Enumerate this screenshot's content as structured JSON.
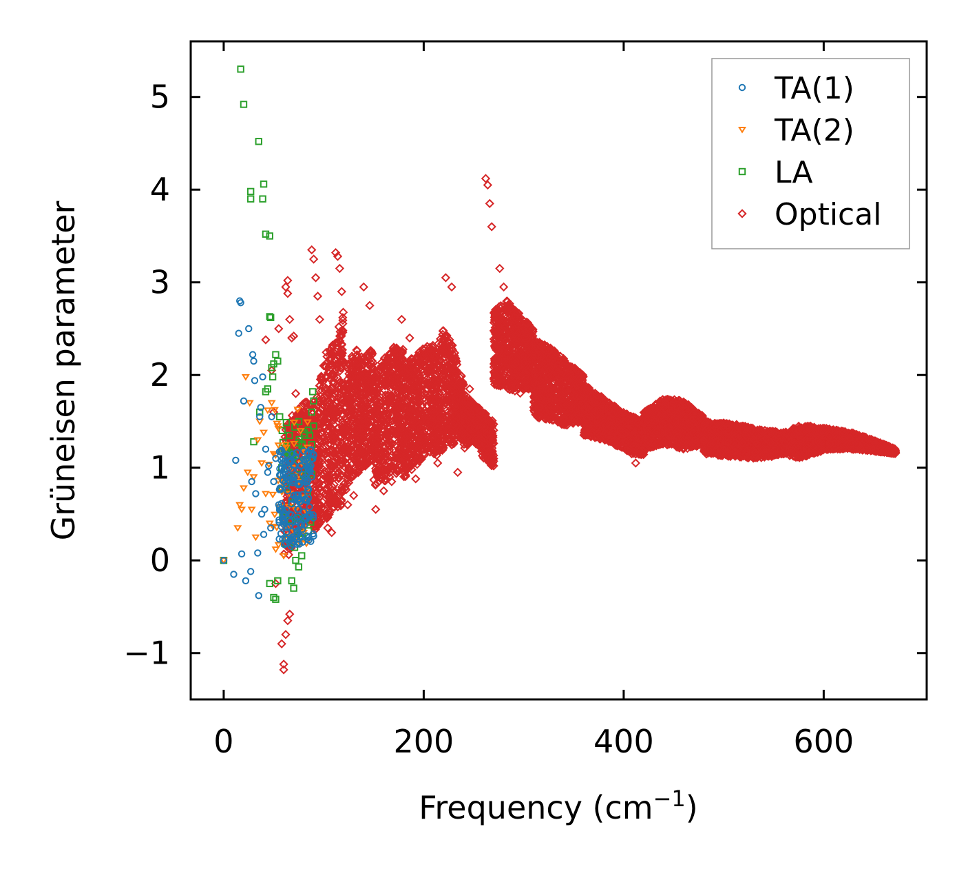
{
  "chart_data": {
    "type": "scatter",
    "title": "",
    "xlabel": "Frequency (cm",
    "xlabel_sup": "−1",
    "xlabel_tail": ")",
    "ylabel": "Grüneisen parameter",
    "xlim": [
      -33,
      703
    ],
    "ylim": [
      -1.5,
      5.6
    ],
    "xticks": [
      0,
      200,
      400,
      600
    ],
    "yticks": [
      -1,
      0,
      1,
      2,
      3,
      4,
      5
    ],
    "ytick_labels": [
      "−1",
      "0",
      "1",
      "2",
      "3",
      "4",
      "5"
    ],
    "legend_position": "top-right",
    "series": [
      {
        "name": "TA(1)",
        "marker": "circle",
        "color": "#1f77b4",
        "points": [
          [
            0,
            0
          ],
          [
            10,
            -0.15
          ],
          [
            12,
            1.08
          ],
          [
            15,
            2.45
          ],
          [
            16,
            2.8
          ],
          [
            17,
            2.78
          ],
          [
            18,
            0.07
          ],
          [
            20,
            1.72
          ],
          [
            22,
            -0.22
          ],
          [
            25,
            2.5
          ],
          [
            27,
            -0.12
          ],
          [
            28,
            0.85
          ],
          [
            29,
            2.22
          ],
          [
            30,
            2.15
          ],
          [
            31,
            1.94
          ],
          [
            32,
            0.72
          ],
          [
            34,
            0.08
          ],
          [
            35,
            -0.38
          ],
          [
            36,
            1.55
          ],
          [
            37,
            1.65
          ],
          [
            38,
            0.5
          ],
          [
            39,
            1.98
          ],
          [
            40,
            0.28
          ],
          [
            41,
            0.55
          ],
          [
            42,
            1.2
          ],
          [
            44,
            0.95
          ],
          [
            45,
            1.02
          ],
          [
            47,
            0.35
          ],
          [
            48,
            1.55
          ],
          [
            50,
            0.85
          ],
          [
            52,
            1.1
          ],
          [
            55,
            0.6
          ],
          [
            57,
            0.92
          ],
          [
            60,
            0.48
          ],
          [
            62,
            1.05
          ],
          [
            64,
            0.75
          ],
          [
            66,
            0.42
          ],
          [
            68,
            0.98
          ],
          [
            70,
            0.7
          ],
          [
            72,
            1.12
          ],
          [
            74,
            0.55
          ],
          [
            76,
            0.82
          ],
          [
            78,
            0.38
          ],
          [
            80,
            1.18
          ],
          [
            82,
            0.65
          ],
          [
            84,
            1.0
          ],
          [
            86,
            0.5
          ],
          [
            88,
            0.9
          ]
        ]
      },
      {
        "name": "TA(2)",
        "marker": "triangle-down",
        "color": "#ff7f0e",
        "points": [
          [
            0,
            0
          ],
          [
            14,
            0.35
          ],
          [
            16,
            0.6
          ],
          [
            18,
            0.55
          ],
          [
            20,
            0.78
          ],
          [
            22,
            1.98
          ],
          [
            24,
            0.95
          ],
          [
            26,
            1.7
          ],
          [
            28,
            0.55
          ],
          [
            30,
            0.9
          ],
          [
            32,
            0.25
          ],
          [
            34,
            1.3
          ],
          [
            36,
            1.5
          ],
          [
            38,
            1.05
          ],
          [
            40,
            1.38
          ],
          [
            42,
            0.72
          ],
          [
            44,
            1.62
          ],
          [
            46,
            0.4
          ],
          [
            48,
            1.7
          ],
          [
            50,
            1.15
          ],
          [
            52,
            0.12
          ],
          [
            54,
            1.45
          ],
          [
            56,
            0.58
          ],
          [
            58,
            0.88
          ],
          [
            60,
            0.05
          ],
          [
            62,
            1.25
          ],
          [
            64,
            0.35
          ],
          [
            66,
            0.72
          ],
          [
            68,
            1.0
          ],
          [
            70,
            0.22
          ],
          [
            72,
            0.55
          ],
          [
            75,
            0.85
          ],
          [
            78,
            1.05
          ],
          [
            80,
            0.3
          ]
        ]
      },
      {
        "name": "LA",
        "marker": "square",
        "color": "#2ca02c",
        "points": [
          [
            0,
            0
          ],
          [
            17,
            5.3
          ],
          [
            20,
            4.92
          ],
          [
            27,
            3.98
          ],
          [
            27,
            3.9
          ],
          [
            35,
            4.52
          ],
          [
            40,
            4.06
          ],
          [
            39,
            3.9
          ],
          [
            42,
            3.52
          ],
          [
            46,
            3.5
          ],
          [
            46,
            2.63
          ],
          [
            47,
            2.62
          ],
          [
            48,
            2.08
          ],
          [
            49,
            1.98
          ],
          [
            50,
            2.12
          ],
          [
            52,
            2.22
          ],
          [
            54,
            2.15
          ],
          [
            42,
            1.82
          ],
          [
            44,
            1.85
          ],
          [
            30,
            1.28
          ],
          [
            36,
            1.6
          ],
          [
            46,
            -0.25
          ],
          [
            50,
            -0.4
          ],
          [
            52,
            -0.42
          ],
          [
            54,
            -0.22
          ],
          [
            56,
            1.55
          ],
          [
            58,
            1.0
          ],
          [
            60,
            0.5
          ],
          [
            62,
            0.78
          ],
          [
            64,
            0.25
          ],
          [
            66,
            1.15
          ],
          [
            68,
            -0.22
          ],
          [
            70,
            -0.3
          ],
          [
            72,
            0.0
          ],
          [
            75,
            -0.07
          ],
          [
            78,
            0.05
          ],
          [
            80,
            0.92
          ],
          [
            82,
            0.45
          ],
          [
            84,
            1.1
          ],
          [
            86,
            1.35
          ],
          [
            88,
            1.6
          ],
          [
            89,
            1.82
          ],
          [
            90,
            1.72
          ],
          [
            90,
            1.45
          ],
          [
            88,
            1.25
          ]
        ]
      },
      {
        "name": "Optical",
        "marker": "diamond",
        "color": "#d62728",
        "points": [
          [
            42,
            2.38
          ],
          [
            48,
            2.05
          ],
          [
            50,
            1.6
          ],
          [
            52,
            -0.25
          ],
          [
            55,
            2.5
          ],
          [
            58,
            -0.9
          ],
          [
            60,
            -1.12
          ],
          [
            60,
            -1.18
          ],
          [
            62,
            -0.8
          ],
          [
            64,
            -0.65
          ],
          [
            66,
            -0.58
          ],
          [
            64,
            2.88
          ],
          [
            62,
            2.95
          ],
          [
            64,
            3.02
          ],
          [
            66,
            2.6
          ],
          [
            68,
            2.4
          ],
          [
            70,
            2.42
          ],
          [
            72,
            1.8
          ],
          [
            88,
            3.35
          ],
          [
            90,
            3.25
          ],
          [
            92,
            3.05
          ],
          [
            94,
            2.85
          ],
          [
            96,
            2.6
          ],
          [
            100,
            2.1
          ],
          [
            104,
            0.35
          ],
          [
            108,
            0.3
          ],
          [
            112,
            3.32
          ],
          [
            114,
            3.28
          ],
          [
            116,
            3.15
          ],
          [
            118,
            2.9
          ],
          [
            124,
            0.6
          ],
          [
            130,
            0.7
          ],
          [
            140,
            2.95
          ],
          [
            146,
            2.75
          ],
          [
            152,
            0.55
          ],
          [
            160,
            0.75
          ],
          [
            168,
            0.85
          ],
          [
            178,
            2.6
          ],
          [
            186,
            2.4
          ],
          [
            192,
            0.88
          ],
          [
            205,
            1.3
          ],
          [
            214,
            1.05
          ],
          [
            222,
            3.05
          ],
          [
            228,
            2.95
          ],
          [
            234,
            0.95
          ],
          [
            246,
            1.85
          ],
          [
            258,
            1.3
          ],
          [
            262,
            4.12
          ],
          [
            264,
            4.05
          ],
          [
            266,
            3.85
          ],
          [
            268,
            3.6
          ],
          [
            270,
            1.02
          ],
          [
            272,
            2.4
          ],
          [
            276,
            3.15
          ],
          [
            280,
            2.95
          ],
          [
            285,
            2.7
          ],
          [
            292,
            2.65
          ],
          [
            298,
            2.5
          ],
          [
            302,
            2.45
          ],
          [
            305,
            1.85
          ],
          [
            310,
            2.25
          ],
          [
            318,
            2.2
          ],
          [
            326,
            2.05
          ],
          [
            334,
            1.95
          ],
          [
            342,
            1.85
          ],
          [
            350,
            1.85
          ],
          [
            355,
            1.5
          ],
          [
            360,
            1.75
          ],
          [
            370,
            1.7
          ],
          [
            378,
            1.55
          ],
          [
            386,
            1.45
          ],
          [
            394,
            1.35
          ],
          [
            402,
            1.28
          ],
          [
            408,
            1.15
          ],
          [
            412,
            1.05
          ],
          [
            420,
            1.55
          ],
          [
            430,
            1.65
          ],
          [
            440,
            1.72
          ],
          [
            450,
            1.7
          ],
          [
            458,
            1.55
          ],
          [
            466,
            1.45
          ],
          [
            474,
            1.35
          ],
          [
            480,
            1.3
          ],
          [
            490,
            1.45
          ],
          [
            500,
            1.42
          ],
          [
            512,
            1.4
          ],
          [
            522,
            1.35
          ],
          [
            530,
            1.3
          ],
          [
            540,
            1.2
          ],
          [
            548,
            1.12
          ],
          [
            556,
            1.28
          ],
          [
            566,
            1.22
          ],
          [
            576,
            1.35
          ],
          [
            586,
            1.42
          ],
          [
            596,
            1.38
          ],
          [
            606,
            1.35
          ],
          [
            616,
            1.35
          ],
          [
            626,
            1.32
          ],
          [
            636,
            1.3
          ],
          [
            646,
            1.26
          ],
          [
            656,
            1.22
          ],
          [
            666,
            1.18
          ],
          [
            672,
            1.16
          ]
        ],
        "bands": [
          {
            "x0": 60,
            "x1": 90,
            "lo": [
              -0.1,
              0.2,
              0.35,
              0.5
            ],
            "hi": [
              1.4,
              1.6,
              1.7,
              1.75
            ]
          },
          {
            "x0": 90,
            "x1": 120,
            "lo": [
              0.3,
              0.4,
              0.55,
              0.6
            ],
            "hi": [
              1.6,
              2.2,
              2.4,
              2.7
            ]
          },
          {
            "x0": 120,
            "x1": 150,
            "lo": [
              0.7,
              0.9,
              1.0,
              1.1
            ],
            "hi": [
              2.0,
              2.3,
              2.2,
              2.3
            ]
          },
          {
            "x0": 150,
            "x1": 180,
            "lo": [
              0.8,
              0.85,
              0.9,
              1.0
            ],
            "hi": [
              1.9,
              2.2,
              2.3,
              2.3
            ]
          },
          {
            "x0": 180,
            "x1": 210,
            "lo": [
              0.88,
              1.0,
              1.1,
              1.2
            ],
            "hi": [
              2.1,
              2.2,
              2.3,
              2.35
            ]
          },
          {
            "x0": 210,
            "x1": 240,
            "lo": [
              1.1,
              1.2,
              1.25,
              1.3
            ],
            "hi": [
              2.2,
              2.5,
              2.3,
              1.9
            ]
          },
          {
            "x0": 240,
            "x1": 270,
            "lo": [
              1.2,
              1.3,
              1.1,
              1.0
            ],
            "hi": [
              1.8,
              1.7,
              1.6,
              1.5
            ]
          },
          {
            "x0": 270,
            "x1": 310,
            "lo": [
              1.9,
              1.85,
              1.8,
              1.9
            ],
            "hi": [
              2.7,
              2.8,
              2.65,
              2.5
            ]
          },
          {
            "x0": 310,
            "x1": 360,
            "lo": [
              1.55,
              1.5,
              1.45,
              1.5
            ],
            "hi": [
              2.4,
              2.3,
              2.15,
              2.0
            ]
          },
          {
            "x0": 360,
            "x1": 420,
            "lo": [
              1.35,
              1.3,
              1.2,
              1.1
            ],
            "hi": [
              1.9,
              1.75,
              1.6,
              1.5
            ]
          },
          {
            "x0": 420,
            "x1": 480,
            "lo": [
              1.2,
              1.25,
              1.2,
              1.25
            ],
            "hi": [
              1.6,
              1.75,
              1.72,
              1.55
            ]
          },
          {
            "x0": 480,
            "x1": 560,
            "lo": [
              1.15,
              1.12,
              1.1,
              1.15
            ],
            "hi": [
              1.5,
              1.48,
              1.42,
              1.38
            ]
          },
          {
            "x0": 560,
            "x1": 605,
            "lo": [
              1.15,
              1.1,
              1.15,
              1.2
            ],
            "hi": [
              1.38,
              1.45,
              1.45,
              1.42
            ]
          },
          {
            "x0": 605,
            "x1": 672,
            "lo": [
              1.2,
              1.2,
              1.18,
              1.15
            ],
            "hi": [
              1.42,
              1.38,
              1.3,
              1.2
            ]
          }
        ]
      }
    ]
  }
}
